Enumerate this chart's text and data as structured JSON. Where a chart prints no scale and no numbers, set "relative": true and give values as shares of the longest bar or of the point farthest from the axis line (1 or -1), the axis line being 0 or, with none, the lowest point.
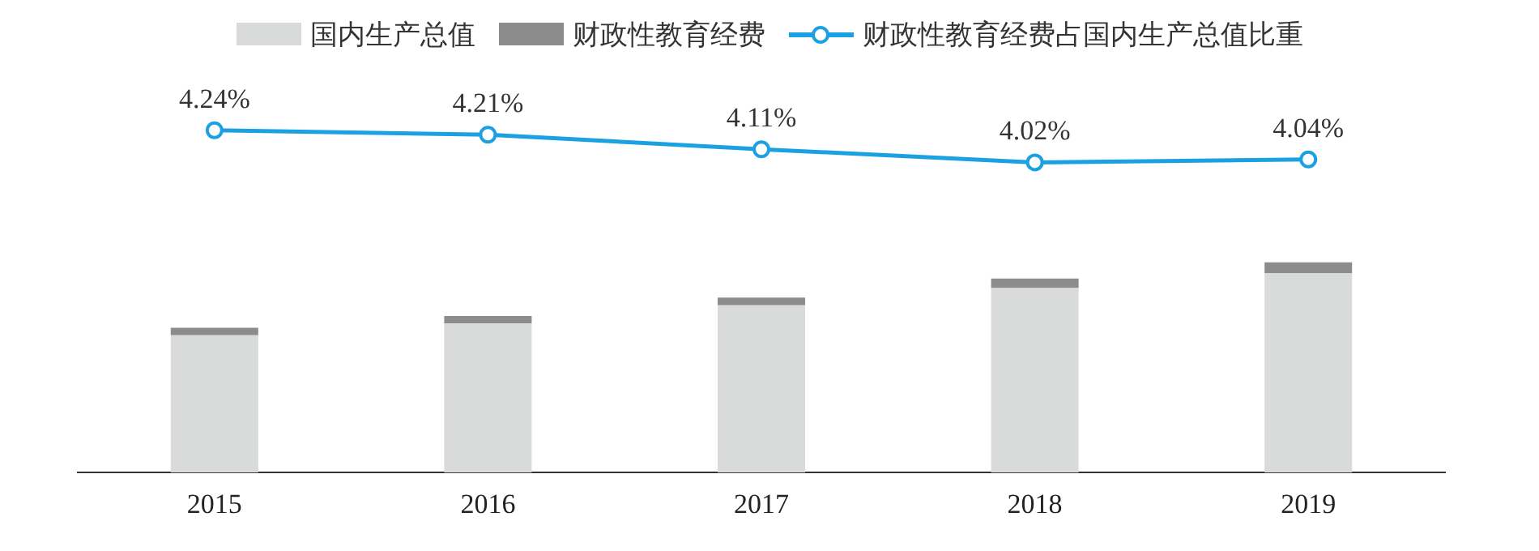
{
  "chart_data": [
    {
      "type": "line",
      "categories": [
        "2015",
        "2016",
        "2017",
        "2018",
        "2019"
      ],
      "tick_labels": false,
      "legend": "top",
      "marker": "circle",
      "series": [
        {
          "name": "财政性教育经费占国内生产总值比重",
          "color": "#1ba1e2",
          "values": [
            4.24,
            4.21,
            4.11,
            4.02,
            4.04
          ],
          "value_labels": [
            "4.24%",
            "4.21%",
            "4.11%",
            "4.02%",
            "4.04%"
          ]
        }
      ]
    },
    {
      "type": "bar",
      "stacked": true,
      "relative": true,
      "categories": [
        "2015",
        "2016",
        "2017",
        "2018",
        "2019"
      ],
      "legend": "top",
      "grid": false,
      "tick_labels": "x",
      "series": [
        {
          "name": "国内生产总值",
          "color": "#d9dbda",
          "values": [
            0.653,
            0.709,
            0.796,
            0.878,
            0.949
          ]
        },
        {
          "name": "财政性教育经费",
          "color": "#8c8c8c",
          "values": [
            0.036,
            0.036,
            0.036,
            0.045,
            0.051
          ]
        }
      ]
    }
  ]
}
